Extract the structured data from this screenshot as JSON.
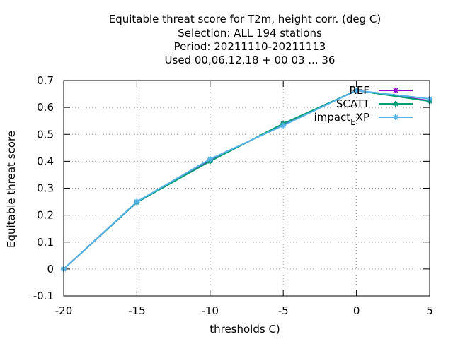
{
  "chart_data": {
    "type": "line",
    "title_lines": [
      "Equitable threat score  for T2m, height corr. (deg C)",
      "Selection: ALL    194 stations",
      "Period: 20211110-20211113",
      "Used  00,06,12,18 + 00 03 ... 36"
    ],
    "xlabel": "thresholds C)",
    "ylabel": "Equitable threat score",
    "xlim": [
      -20,
      5
    ],
    "ylim": [
      -0.1,
      0.7
    ],
    "x_ticks": [
      -20,
      -15,
      -10,
      -5,
      0,
      5
    ],
    "y_ticks": [
      -0.1,
      0,
      0.1,
      0.2,
      0.3,
      0.4,
      0.5,
      0.6,
      0.7
    ],
    "x_tick_labels": [
      "-20",
      "-15",
      "-10",
      "-5",
      "0",
      "5"
    ],
    "y_tick_labels": [
      "-0.1",
      "0",
      "0.1",
      "0.2",
      "0.3",
      "0.4",
      "0.5",
      "0.6",
      "0.7"
    ],
    "grid": true,
    "legend_position": "top-right",
    "x": [
      -20,
      -15,
      -10,
      -5,
      0,
      5
    ],
    "series": [
      {
        "name": "REF",
        "color": "#9400d3",
        "values": [
          0.0,
          0.248,
          0.402,
          0.538,
          0.663,
          0.625
        ]
      },
      {
        "name": "SCATT",
        "color": "#009e73",
        "values": [
          0.0,
          0.248,
          0.4,
          0.54,
          0.663,
          0.623
        ]
      },
      {
        "name": "impact_EXP",
        "color": "#56b4e9",
        "values": [
          0.0,
          0.25,
          0.408,
          0.533,
          0.663,
          0.632
        ]
      }
    ]
  }
}
